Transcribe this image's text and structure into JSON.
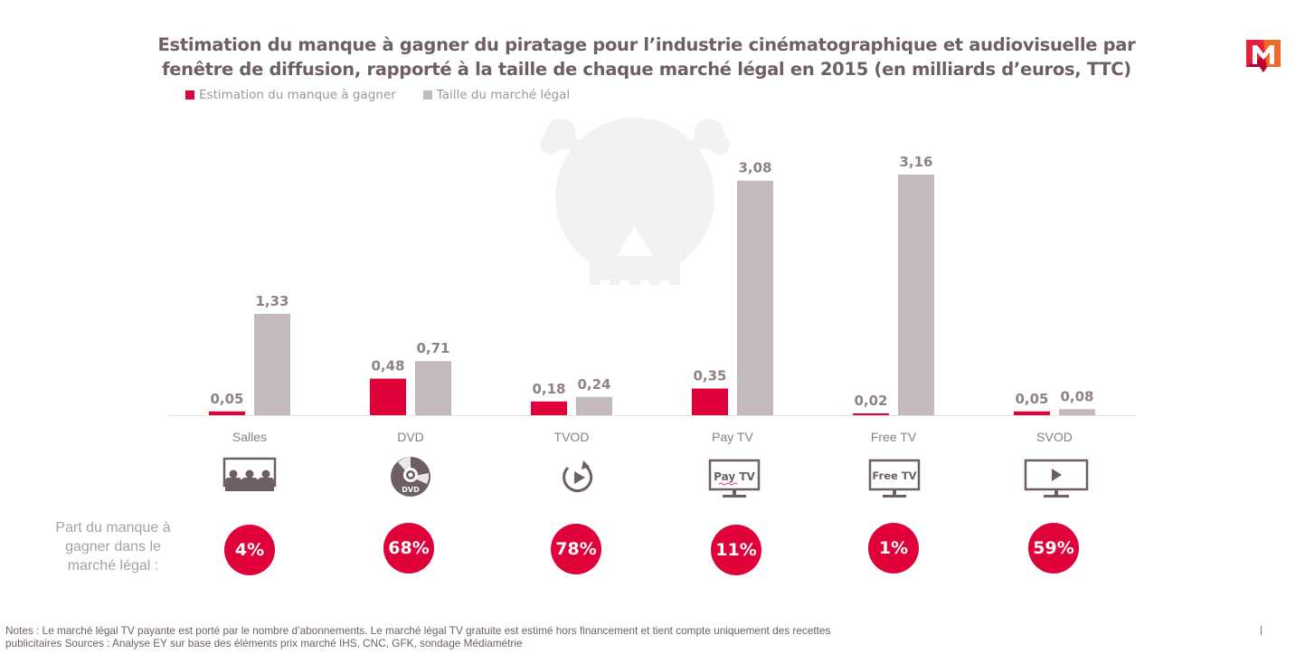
{
  "chart_data": {
    "type": "bar",
    "title": "Estimation du manque à gagner du piratage pour l’industrie cinématographique et audiovisuelle par fenêtre de diffusion, rapporté à la taille de chaque marché légal en 2015 (en milliards d’euros, TTC)",
    "title_lines": [
      "Estimation du manque à gagner du piratage pour l’industrie cinématographique et audiovisuelle par",
      "fenêtre de diffusion, rapporté à la taille de chaque marché légal en 2015 (en milliards d’euros, TTC)"
    ],
    "xlabel": "",
    "ylabel": "",
    "ylim": [
      0,
      3.16
    ],
    "grid": false,
    "legend_position": "top-left",
    "categories": [
      "Salles",
      "DVD",
      "TVOD",
      "Pay TV",
      "Free TV",
      "SVOD"
    ],
    "series": [
      {
        "name": "Estimation du manque à gagner",
        "color": "#e0003a",
        "values": [
          0.05,
          0.48,
          0.18,
          0.35,
          0.02,
          0.05
        ],
        "labels": [
          "0,05",
          "0,48",
          "0,18",
          "0,35",
          "0,02",
          "0,05"
        ]
      },
      {
        "name": "Taille du marché légal",
        "color": "#c4babb",
        "values": [
          1.33,
          0.71,
          0.24,
          3.08,
          3.16,
          0.08
        ],
        "labels": [
          "1,33",
          "0,71",
          "0,24",
          "3,08",
          "3,16",
          "0,08"
        ]
      }
    ],
    "shares": {
      "title": "Part du manque à gagner dans le marché légal :",
      "title_lines": [
        "Part du manque à",
        "gagner dans le",
        "marché légal :"
      ],
      "values": [
        "4%",
        "68%",
        "78%",
        "11%",
        "1%",
        "59%"
      ]
    }
  },
  "icons": [
    {
      "category": "Salles",
      "name": "cinema-audience-icon"
    },
    {
      "category": "DVD",
      "name": "dvd-disc-icon",
      "text": "DVD"
    },
    {
      "category": "TVOD",
      "name": "replay-play-icon"
    },
    {
      "category": "Pay TV",
      "name": "pay-tv-screen-icon",
      "text": "Pay TV"
    },
    {
      "category": "Free TV",
      "name": "free-tv-screen-icon",
      "text": "Free TV"
    },
    {
      "category": "SVOD",
      "name": "streaming-screen-icon"
    }
  ],
  "colors": {
    "accent": "#e0003a",
    "gray_bar": "#c4babb",
    "text": "#6e6062",
    "watermark": "#f2f2f2"
  },
  "notes": "Notes : Le marché légal TV payante est porté par le nombre d’abonnements. Le marché légal TV gratuite est estimé hors financement et tient compte uniquement des recettes publicitaires Sources : Analyse EY sur base des éléments prix marché IHS, CNC, GFK, sondage Médiamétrie",
  "notes_lines": [
    "Notes : Le marché légal TV payante est porté par le nombre d’abonnements. Le marché légal TV gratuite est estimé hors financement et tient compte uniquement des recettes",
    "publicitaires Sources : Analyse EY sur base des éléments prix marché IHS, CNC, GFK, sondage Médiamétrie"
  ],
  "logo": {
    "name": "M-logo",
    "letter": "M"
  }
}
